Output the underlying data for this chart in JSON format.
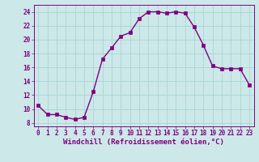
{
  "x": [
    0,
    1,
    2,
    3,
    4,
    5,
    6,
    7,
    8,
    9,
    10,
    11,
    12,
    13,
    14,
    15,
    16,
    17,
    18,
    19,
    20,
    21,
    22,
    23
  ],
  "y": [
    10.5,
    9.2,
    9.2,
    8.8,
    8.5,
    8.8,
    12.5,
    17.2,
    18.8,
    20.5,
    21.0,
    23.0,
    24.0,
    24.0,
    23.8,
    24.0,
    23.8,
    21.8,
    19.2,
    16.2,
    15.8,
    15.8,
    15.8,
    13.5
  ],
  "line_color": "#800080",
  "marker": "s",
  "marker_size": 2.5,
  "bg_color": "#cce8e8",
  "grid_color": "#aad4d4",
  "xlabel": "Windchill (Refroidissement éolien,°C)",
  "xlim": [
    -0.5,
    23.5
  ],
  "ylim": [
    7.5,
    25.0
  ],
  "yticks": [
    8,
    10,
    12,
    14,
    16,
    18,
    20,
    22,
    24
  ],
  "xticks": [
    0,
    1,
    2,
    3,
    4,
    5,
    6,
    7,
    8,
    9,
    10,
    11,
    12,
    13,
    14,
    15,
    16,
    17,
    18,
    19,
    20,
    21,
    22,
    23
  ],
  "tick_fontsize": 5.5,
  "xlabel_fontsize": 6.5,
  "line_width": 1.0,
  "tick_color": "#800080",
  "label_color": "#800080"
}
